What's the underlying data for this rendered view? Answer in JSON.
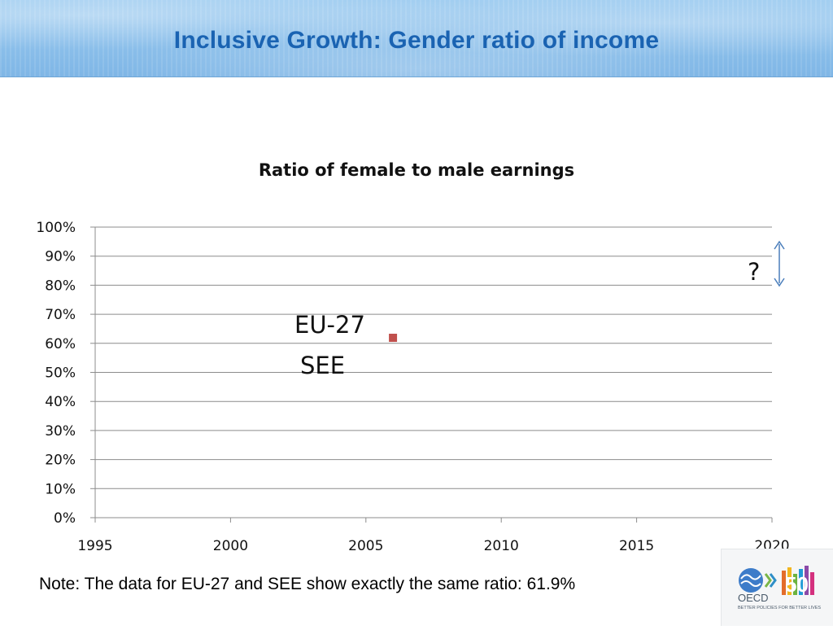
{
  "slide": {
    "title": "Inclusive Growth: Gender ratio of income",
    "note": "Note: The data for EU-27 and SEE show exactly the same ratio: 61.9%"
  },
  "logo": {
    "text": "OECD",
    "number": "50",
    "tagline": "BETTER POLICIES FOR BETTER LIVES"
  },
  "chart_data": {
    "type": "scatter",
    "title": "Ratio of female to male earnings",
    "xlabel": "",
    "ylabel": "",
    "xlim": [
      1995,
      2020
    ],
    "ylim": [
      0,
      1
    ],
    "x_ticks": [
      "1995",
      "2000",
      "2005",
      "2010",
      "2015",
      "2020"
    ],
    "y_ticks": [
      "0%",
      "10%",
      "20%",
      "30%",
      "40%",
      "50%",
      "60%",
      "70%",
      "80%",
      "90%",
      "100%"
    ],
    "grid": true,
    "series": [
      {
        "color": "#c0504d",
        "points": [
          {
            "x": 2006,
            "y": 0.619
          }
        ]
      }
    ],
    "annotations": {
      "eu27": "EU-27",
      "see": "SEE",
      "question": "?"
    },
    "arrow_color": "#4a7ebb"
  }
}
